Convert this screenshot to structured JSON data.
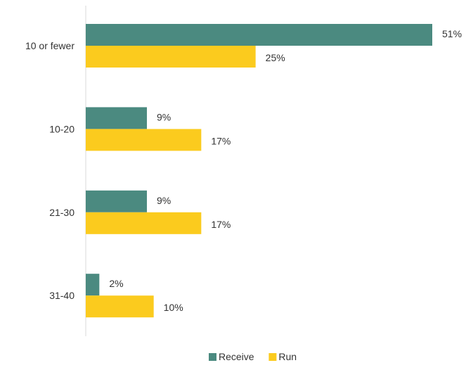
{
  "chart_data": {
    "type": "bar",
    "orientation": "horizontal",
    "categories": [
      "10 or fewer",
      "10-20",
      "21-30",
      "31-40"
    ],
    "series": [
      {
        "name": "Receive",
        "values": [
          51,
          9,
          9,
          2
        ],
        "color": "#4b8a80"
      },
      {
        "name": "Run",
        "values": [
          25,
          17,
          17,
          10
        ],
        "color": "#fbcb1e"
      }
    ],
    "value_suffix": "%",
    "xlim": [
      0,
      51
    ],
    "grid": false,
    "legend": "bottom-center"
  }
}
